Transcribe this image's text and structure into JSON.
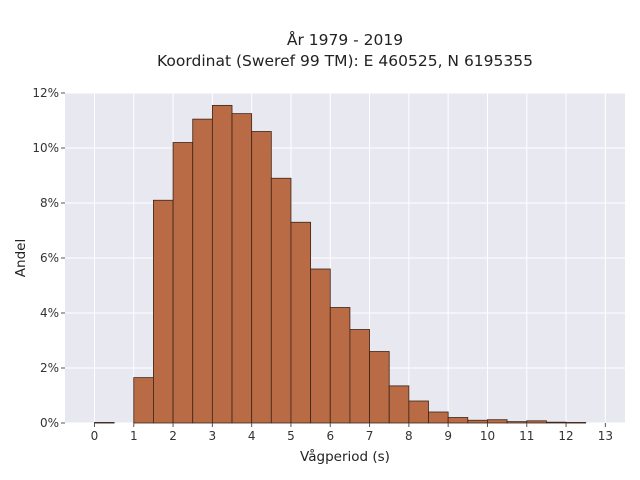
{
  "chart_data": {
    "type": "bar",
    "title_lines": [
      "År 1979 - 2019",
      "Koordinat (Sweref 99 TM): E 460525, N 6195355"
    ],
    "xlabel": "Vågperiod (s)",
    "ylabel": "Andel",
    "xlim": [
      -0.75,
      13.5
    ],
    "ylim": [
      0,
      12
    ],
    "x_ticks": [
      0,
      1,
      2,
      3,
      4,
      5,
      6,
      7,
      8,
      9,
      10,
      11,
      12,
      13
    ],
    "y_ticks": [
      0,
      2,
      4,
      6,
      8,
      10,
      12
    ],
    "y_tick_labels": [
      "0%",
      "2%",
      "4%",
      "6%",
      "8%",
      "10%",
      "12%"
    ],
    "bin_width": 0.5,
    "bins": [
      {
        "start": 0.0,
        "value": 0.02
      },
      {
        "start": 0.5,
        "value": 0.0
      },
      {
        "start": 1.0,
        "value": 1.65
      },
      {
        "start": 1.5,
        "value": 8.1
      },
      {
        "start": 2.0,
        "value": 10.2
      },
      {
        "start": 2.5,
        "value": 11.05
      },
      {
        "start": 3.0,
        "value": 11.55
      },
      {
        "start": 3.5,
        "value": 11.25
      },
      {
        "start": 4.0,
        "value": 10.6
      },
      {
        "start": 4.5,
        "value": 8.9
      },
      {
        "start": 5.0,
        "value": 7.3
      },
      {
        "start": 5.5,
        "value": 5.6
      },
      {
        "start": 6.0,
        "value": 4.2
      },
      {
        "start": 6.5,
        "value": 3.4
      },
      {
        "start": 7.0,
        "value": 2.6
      },
      {
        "start": 7.5,
        "value": 1.35
      },
      {
        "start": 8.0,
        "value": 0.8
      },
      {
        "start": 8.5,
        "value": 0.4
      },
      {
        "start": 9.0,
        "value": 0.2
      },
      {
        "start": 9.5,
        "value": 0.1
      },
      {
        "start": 10.0,
        "value": 0.12
      },
      {
        "start": 10.5,
        "value": 0.05
      },
      {
        "start": 11.0,
        "value": 0.08
      },
      {
        "start": 11.5,
        "value": 0.03
      },
      {
        "start": 12.0,
        "value": 0.02
      }
    ],
    "grid": true,
    "colors": {
      "bar_fill": "#b86b45",
      "bar_stroke": "#3d2416",
      "plot_background": "#e8e8f1",
      "grid": "#ffffff"
    }
  }
}
